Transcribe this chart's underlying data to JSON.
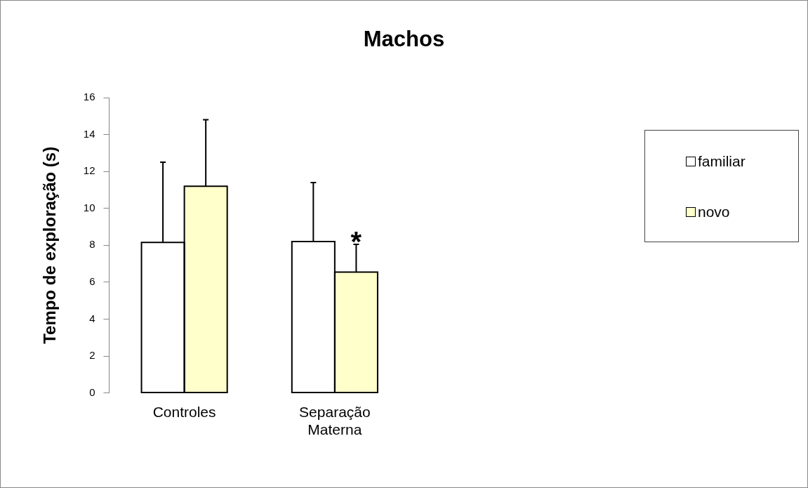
{
  "chart_data": {
    "type": "bar",
    "title": "Machos",
    "ylabel": "Tempo de exploração (s)",
    "categories": [
      "Controles",
      "Separação Materna"
    ],
    "series": [
      {
        "name": "familiar",
        "color": "#ffffff",
        "values": [
          8.15,
          8.2
        ],
        "errors": [
          [
            8.15,
            12.5
          ],
          [
            8.2,
            11.4
          ]
        ]
      },
      {
        "name": "novo",
        "color": "#ffffcc",
        "values": [
          11.2,
          6.55
        ],
        "errors": [
          [
            11.2,
            14.8
          ],
          [
            6.55,
            8.05
          ]
        ]
      }
    ],
    "ylim": [
      0,
      16
    ],
    "yticks": [
      0,
      2,
      4,
      6,
      8,
      10,
      12,
      14,
      16
    ],
    "grid": false,
    "legend": "right",
    "annotations": [
      {
        "text": "*",
        "x": "Separação Materna",
        "y": 6.55
      }
    ]
  }
}
